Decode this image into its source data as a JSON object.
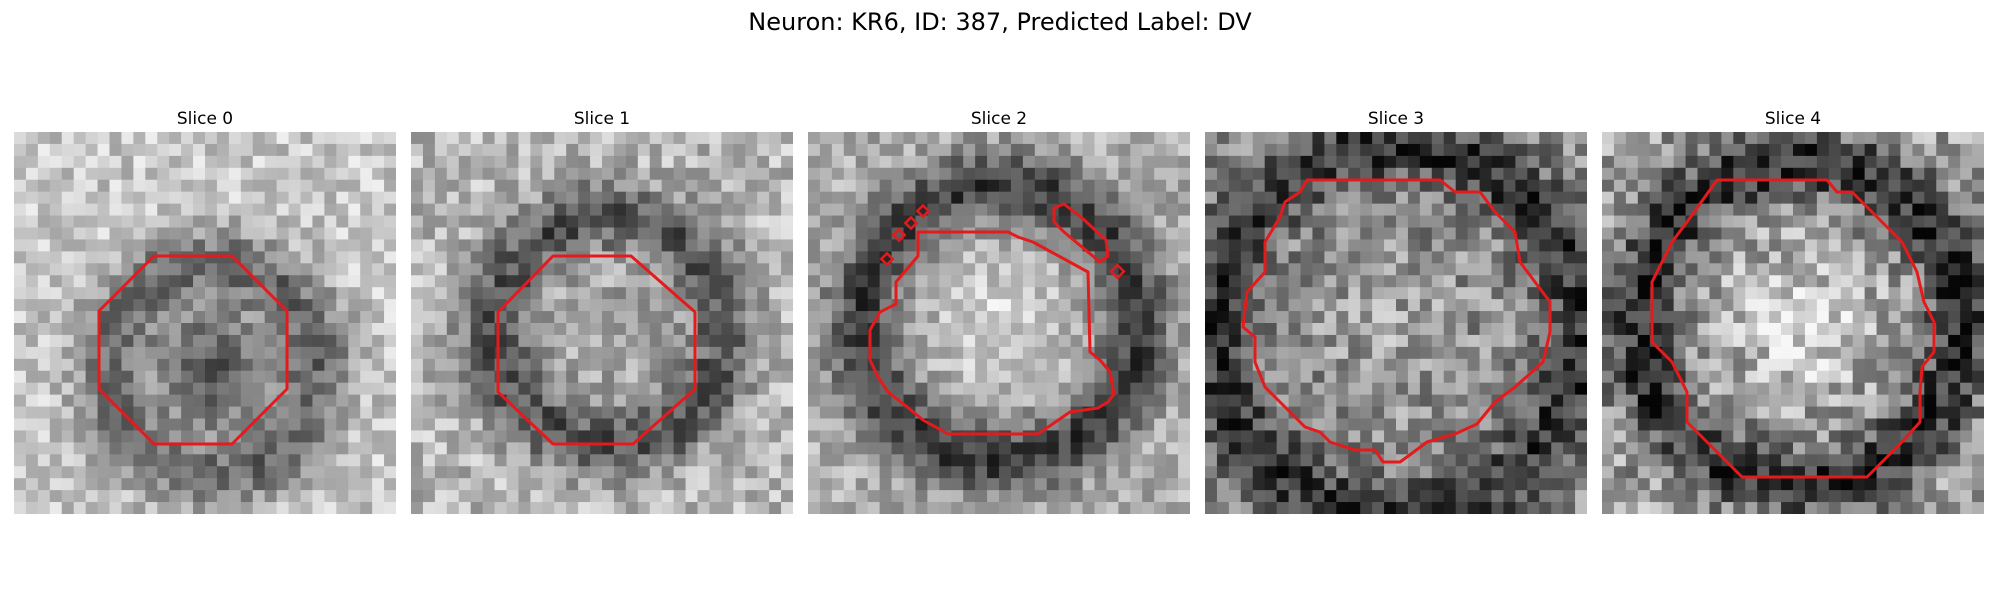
{
  "figure_title": "Neuron: KR6, ID: 387, Predicted Label: DV",
  "contour_color": "#e41a1c",
  "panels": [
    {
      "title": "Slice 0"
    },
    {
      "title": "Slice 1"
    },
    {
      "title": "Slice 2"
    },
    {
      "title": "Slice 3"
    },
    {
      "title": "Slice 4"
    }
  ]
}
